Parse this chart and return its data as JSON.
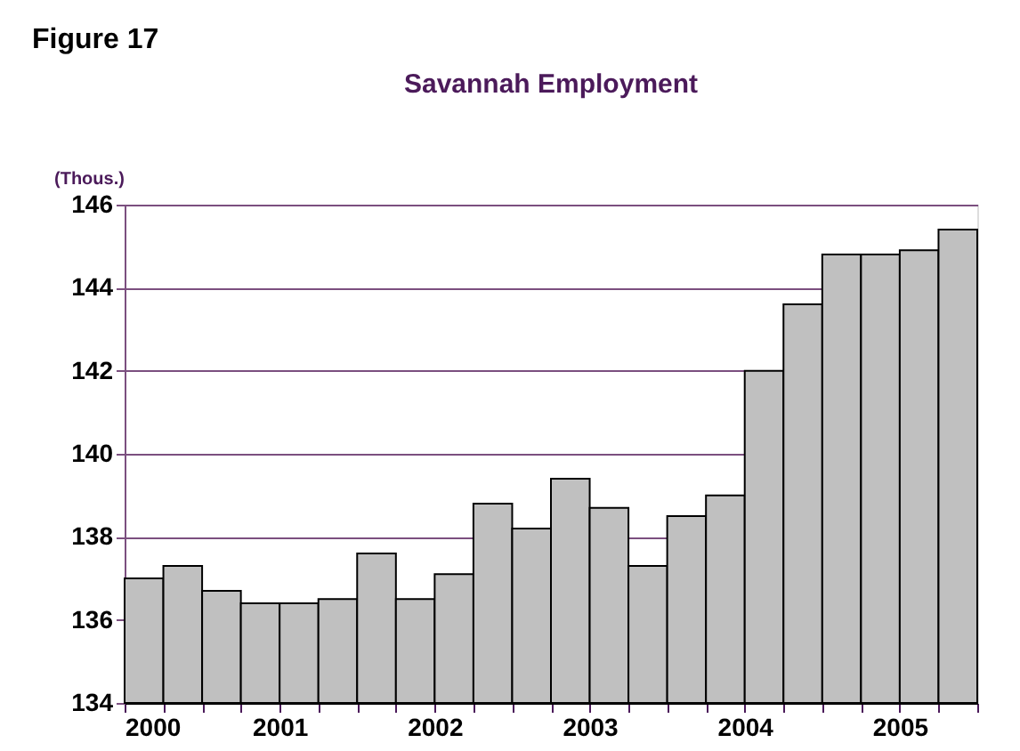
{
  "chart_data": {
    "type": "bar",
    "title": "Savannah Employment",
    "ylabel": "(Thous.)",
    "annotations": [
      "Figure 17"
    ],
    "x": [
      2000.125,
      2000.375,
      2000.625,
      2000.875,
      2001.125,
      2001.375,
      2001.625,
      2001.875,
      2002.125,
      2002.375,
      2002.625,
      2002.875,
      2003.125,
      2003.375,
      2003.625,
      2003.875,
      2004.125,
      2004.375,
      2004.625,
      2004.875,
      2005.125,
      2005.375
    ],
    "values": [
      137.0,
      137.3,
      136.7,
      136.4,
      136.4,
      136.5,
      137.6,
      136.5,
      137.1,
      138.8,
      138.2,
      139.4,
      138.7,
      137.3,
      138.5,
      139.0,
      142.0,
      143.6,
      144.8,
      144.8,
      144.9,
      145.4
    ],
    "color": "#c0c0c0",
    "xlim": [
      2000,
      2005.5
    ],
    "xticks": [
      2000,
      {
        "value": 2000.25,
        "label": null
      },
      {
        "value": 2000.5,
        "label": null
      },
      {
        "value": 2000.75,
        "label": null
      },
      2001,
      {
        "value": 2001.25,
        "label": null
      },
      {
        "value": 2001.5,
        "label": null
      },
      {
        "value": 2001.75,
        "label": null
      },
      2002,
      {
        "value": 2002.25,
        "label": null
      },
      {
        "value": 2002.5,
        "label": null
      },
      {
        "value": 2002.75,
        "label": null
      },
      2003,
      {
        "value": 2003.25,
        "label": null
      },
      {
        "value": 2003.5,
        "label": null
      },
      {
        "value": 2003.75,
        "label": null
      },
      2004,
      {
        "value": 2004.25,
        "label": null
      },
      {
        "value": 2004.5,
        "label": null
      },
      {
        "value": 2004.75,
        "label": null
      },
      2005,
      {
        "value": 2005.25,
        "label": null
      },
      {
        "value": 2005.5,
        "label": null
      }
    ],
    "ylim": [
      134,
      146
    ],
    "yticks": [
      134,
      136,
      138,
      140,
      142,
      144,
      146
    ],
    "grid": "y"
  }
}
